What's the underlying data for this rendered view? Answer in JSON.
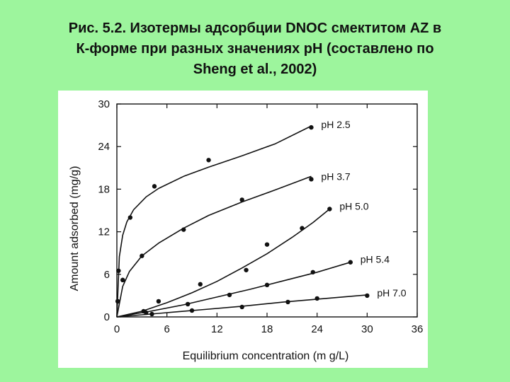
{
  "slide": {
    "title_lines": [
      "Рис. 5.2. Изотермы адсорбции DNOC смектитом AZ в",
      "К-форме  при разных значениях pH (составлено по",
      "Sheng et al., 2002)"
    ]
  },
  "colors": {
    "background": "#9df59d",
    "panel": "#ffffff",
    "ink": "#111111"
  },
  "chart_data": {
    "type": "scatter",
    "xlabel": "Equilibrium concentration (m g/L)",
    "ylabel": "Amount adsorbed (mg/g)",
    "xlim": [
      0,
      36
    ],
    "ylim": [
      0,
      30
    ],
    "xticks": [
      0,
      6,
      12,
      18,
      24,
      30,
      36
    ],
    "yticks": [
      0,
      6,
      12,
      18,
      24,
      30
    ],
    "grid": false,
    "series": [
      {
        "name": "pH 2.5",
        "points": [
          [
            0.1,
            2.2
          ],
          [
            0.2,
            6.5
          ],
          [
            0.7,
            5.2
          ],
          [
            1.6,
            14.0
          ],
          [
            4.5,
            18.4
          ],
          [
            11.0,
            22.1
          ],
          [
            23.3,
            26.7
          ]
        ],
        "curve": [
          [
            0,
            0
          ],
          [
            0.3,
            8.5
          ],
          [
            0.7,
            11.5
          ],
          [
            1.2,
            13.4
          ],
          [
            2,
            15.1
          ],
          [
            3.5,
            16.9
          ],
          [
            5,
            18.1
          ],
          [
            8,
            19.8
          ],
          [
            11,
            21.1
          ],
          [
            15,
            22.7
          ],
          [
            19,
            24.4
          ],
          [
            23.3,
            26.9
          ]
        ]
      },
      {
        "name": "pH 3.7",
        "points": [
          [
            0.1,
            2.2
          ],
          [
            0.7,
            5.2
          ],
          [
            3.0,
            8.6
          ],
          [
            8.0,
            12.3
          ],
          [
            15.0,
            16.5
          ],
          [
            23.3,
            19.4
          ]
        ],
        "curve": [
          [
            0,
            0
          ],
          [
            0.7,
            4.3
          ],
          [
            1.5,
            6.4
          ],
          [
            3,
            8.6
          ],
          [
            5,
            10.4
          ],
          [
            8,
            12.5
          ],
          [
            11,
            14.3
          ],
          [
            15,
            16.2
          ],
          [
            19,
            17.9
          ],
          [
            23.3,
            19.8
          ]
        ]
      },
      {
        "name": "pH 5.0",
        "points": [
          [
            3.2,
            0.8
          ],
          [
            5.0,
            2.2
          ],
          [
            10.0,
            4.6
          ],
          [
            15.5,
            6.6
          ],
          [
            18.0,
            10.2
          ],
          [
            22.2,
            12.5
          ],
          [
            25.5,
            15.2
          ]
        ],
        "curve": [
          [
            0,
            0
          ],
          [
            3,
            0.8
          ],
          [
            6,
            2.0
          ],
          [
            9,
            3.4
          ],
          [
            12,
            5.0
          ],
          [
            15,
            6.9
          ],
          [
            18,
            8.9
          ],
          [
            21,
            11.2
          ],
          [
            23.5,
            13.3
          ],
          [
            25.5,
            15.2
          ]
        ]
      },
      {
        "name": "pH 5.4",
        "points": [
          [
            3.5,
            0.6
          ],
          [
            8.5,
            1.8
          ],
          [
            13.5,
            3.1
          ],
          [
            18.0,
            4.5
          ],
          [
            23.5,
            6.3
          ],
          [
            28.0,
            7.7
          ]
        ],
        "curve": [
          [
            0,
            0
          ],
          [
            4,
            0.8
          ],
          [
            8,
            1.7
          ],
          [
            12,
            2.8
          ],
          [
            16,
            3.9
          ],
          [
            20,
            5.1
          ],
          [
            24,
            6.3
          ],
          [
            28,
            7.7
          ]
        ]
      },
      {
        "name": "pH 7.0",
        "points": [
          [
            4.2,
            0.4
          ],
          [
            9.0,
            0.9
          ],
          [
            15.0,
            1.4
          ],
          [
            20.5,
            2.1
          ],
          [
            24.0,
            2.6
          ],
          [
            30.0,
            3.0
          ]
        ],
        "curve": [
          [
            0,
            0
          ],
          [
            5,
            0.5
          ],
          [
            10,
            1.0
          ],
          [
            15,
            1.5
          ],
          [
            20,
            2.1
          ],
          [
            25,
            2.6
          ],
          [
            30,
            3.1
          ]
        ]
      }
    ]
  }
}
